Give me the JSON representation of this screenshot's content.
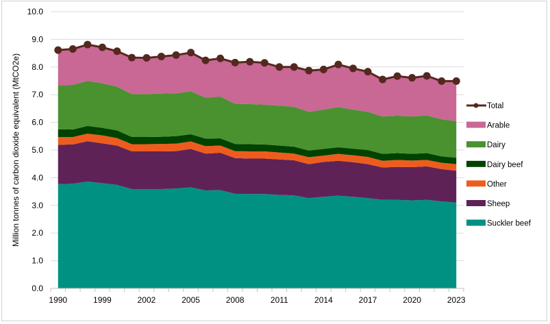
{
  "chart_data": {
    "type": "area",
    "stacked": true,
    "title": "",
    "xlabel": "",
    "ylabel": "Million tonnes of carbon dioxide equivalent (MtCO2e)",
    "ylim": [
      0,
      10
    ],
    "yticks": [
      "0.0",
      "1.0",
      "2.0",
      "3.0",
      "4.0",
      "5.0",
      "6.0",
      "7.0",
      "8.0",
      "9.0",
      "10.0"
    ],
    "grid": true,
    "legend_position": "right",
    "categories": [
      "1990",
      "1995",
      "1998",
      "1999",
      "2000",
      "2001",
      "2002",
      "2003",
      "2004",
      "2005",
      "2006",
      "2007",
      "2008",
      "2009",
      "2010",
      "2011",
      "2012",
      "2013",
      "2014",
      "2015",
      "2016",
      "2017",
      "2018",
      "2019",
      "2020",
      "2021",
      "2022",
      "2023"
    ],
    "xtick_labels": [
      "1990",
      "1999",
      "2002",
      "2005",
      "2008",
      "2011",
      "2014",
      "2017",
      "2020",
      "2023"
    ],
    "series": [
      {
        "name": "Suckler beef",
        "color": "#009183",
        "values": [
          3.77,
          3.78,
          3.86,
          3.8,
          3.74,
          3.59,
          3.59,
          3.59,
          3.61,
          3.65,
          3.54,
          3.55,
          3.42,
          3.41,
          3.41,
          3.38,
          3.36,
          3.26,
          3.31,
          3.35,
          3.31,
          3.26,
          3.2,
          3.2,
          3.18,
          3.2,
          3.14,
          3.1
        ]
      },
      {
        "name": "Sheep",
        "color": "#5f2257",
        "values": [
          1.42,
          1.42,
          1.46,
          1.44,
          1.42,
          1.36,
          1.36,
          1.36,
          1.35,
          1.39,
          1.33,
          1.35,
          1.29,
          1.28,
          1.28,
          1.28,
          1.27,
          1.23,
          1.26,
          1.26,
          1.25,
          1.23,
          1.17,
          1.19,
          1.2,
          1.21,
          1.17,
          1.15
        ]
      },
      {
        "name": "Other",
        "color": "#ee5c1d",
        "values": [
          0.28,
          0.27,
          0.27,
          0.29,
          0.27,
          0.26,
          0.26,
          0.27,
          0.27,
          0.27,
          0.27,
          0.26,
          0.25,
          0.26,
          0.26,
          0.25,
          0.24,
          0.25,
          0.23,
          0.25,
          0.25,
          0.26,
          0.24,
          0.25,
          0.24,
          0.23,
          0.23,
          0.24
        ]
      },
      {
        "name": "Dairy beef",
        "color": "#004200",
        "values": [
          0.28,
          0.27,
          0.28,
          0.27,
          0.28,
          0.26,
          0.26,
          0.26,
          0.27,
          0.26,
          0.27,
          0.26,
          0.26,
          0.26,
          0.25,
          0.25,
          0.25,
          0.24,
          0.24,
          0.24,
          0.24,
          0.25,
          0.25,
          0.25,
          0.24,
          0.25,
          0.23,
          0.23
        ]
      },
      {
        "name": "Dairy",
        "color": "#4a9130",
        "values": [
          1.59,
          1.61,
          1.63,
          1.61,
          1.58,
          1.55,
          1.55,
          1.56,
          1.55,
          1.55,
          1.48,
          1.51,
          1.45,
          1.45,
          1.44,
          1.44,
          1.44,
          1.4,
          1.42,
          1.45,
          1.41,
          1.38,
          1.35,
          1.35,
          1.35,
          1.36,
          1.34,
          1.32
        ]
      },
      {
        "name": "Arable",
        "color": "#c96795",
        "values": [
          1.27,
          1.3,
          1.31,
          1.3,
          1.28,
          1.32,
          1.31,
          1.34,
          1.38,
          1.4,
          1.35,
          1.38,
          1.49,
          1.53,
          1.51,
          1.4,
          1.44,
          1.49,
          1.45,
          1.54,
          1.49,
          1.45,
          1.34,
          1.43,
          1.4,
          1.43,
          1.38,
          1.45
        ]
      }
    ],
    "total": {
      "name": "Total",
      "color": "#54281f",
      "values": [
        8.61,
        8.65,
        8.81,
        8.71,
        8.57,
        8.34,
        8.33,
        8.38,
        8.43,
        8.52,
        8.24,
        8.31,
        8.16,
        8.19,
        8.15,
        8.0,
        8.0,
        7.87,
        7.91,
        8.09,
        7.95,
        7.83,
        7.55,
        7.67,
        7.61,
        7.68,
        7.49,
        7.49
      ]
    }
  }
}
